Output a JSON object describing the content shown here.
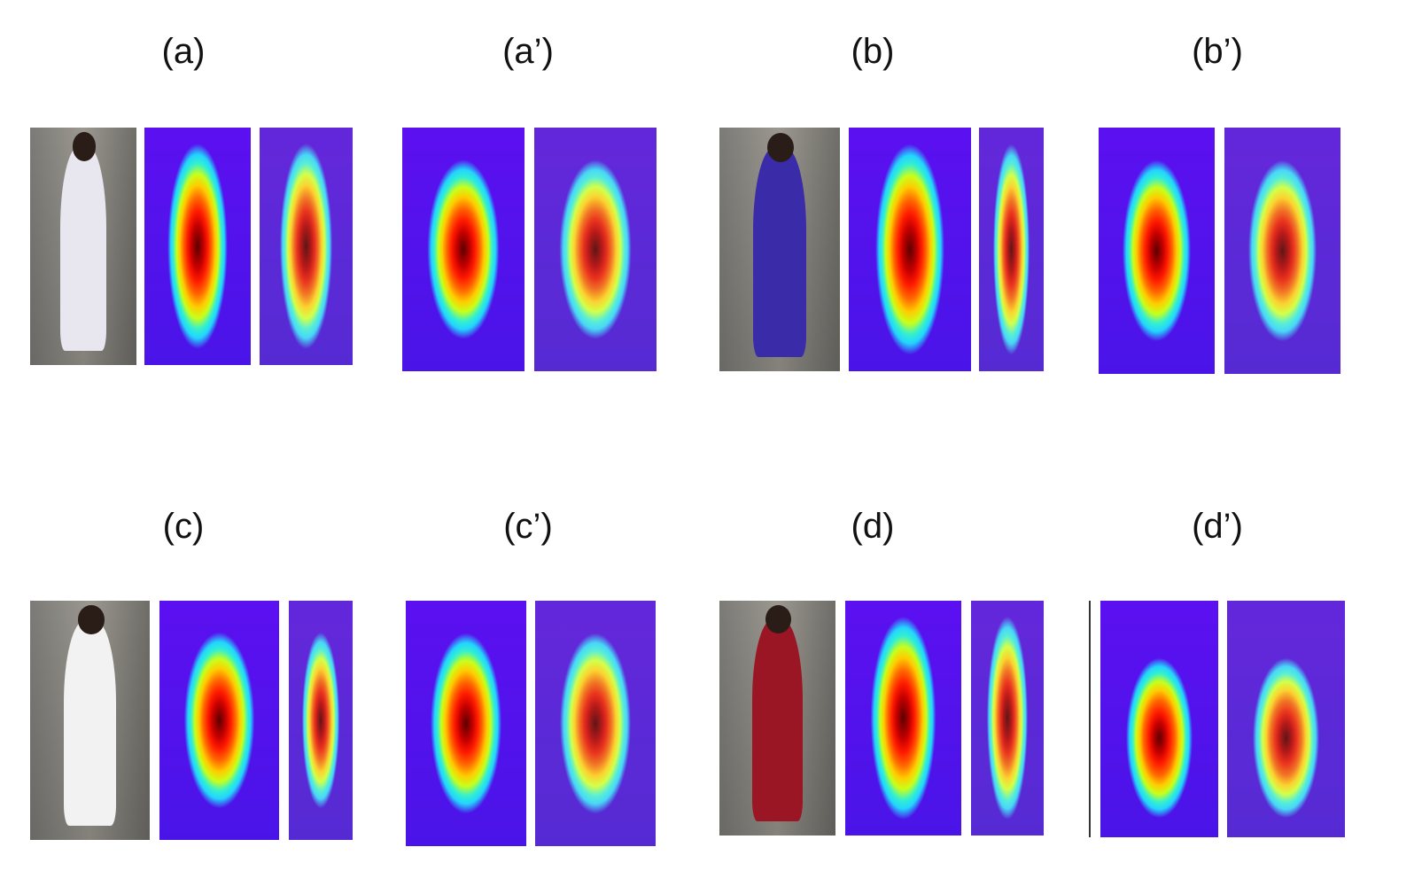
{
  "labels": {
    "a": "(a)",
    "a_prime": "(a’)",
    "b": "(b)",
    "b_prime": "(b’)",
    "c": "(c)",
    "c_prime": "(c’)",
    "d": "(d)",
    "d_prime": "(d’)"
  },
  "colors": {
    "heat_background": "#4a14e8",
    "heat_core": "#c80000",
    "shirt_a": "#e8e6ee",
    "shirt_b": "#3a2ba8",
    "shirt_c": "#f2f2f2",
    "shirt_d": "#9b1624"
  }
}
